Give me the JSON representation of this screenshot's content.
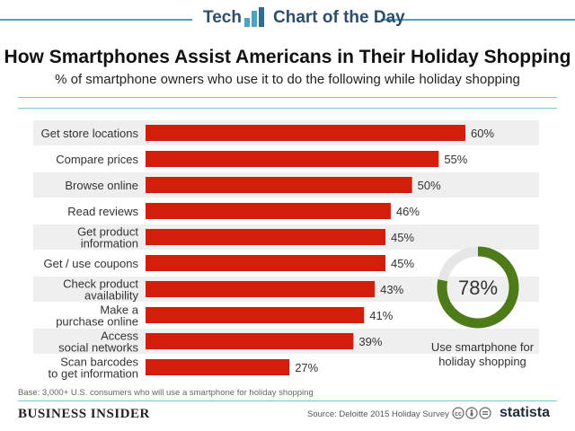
{
  "header": {
    "tech_label": "Tech",
    "cotd_label": "Chart of the Day",
    "accent_color": "#4fa3c2",
    "logo_icon": "bar-chart-icon"
  },
  "title": "How Smartphones Assist Americans in Their Holiday Shopping",
  "subtitle": "% of smartphone owners who use it to do the following while holiday shopping",
  "chart_data": {
    "type": "bar",
    "orientation": "horizontal",
    "title": "How Smartphones Assist Americans in Their Holiday Shopping",
    "subtitle": "% of smartphone owners who use it to do the following while holiday shopping",
    "categories": [
      [
        "Get store locations"
      ],
      [
        "Compare prices"
      ],
      [
        "Browse online"
      ],
      [
        "Read reviews"
      ],
      [
        "Get product",
        "information"
      ],
      [
        "Get / use coupons"
      ],
      [
        "Check product",
        "availability"
      ],
      [
        "Make a",
        "purchase online"
      ],
      [
        "Access",
        "social networks"
      ],
      [
        "Scan barcodes",
        "to get information"
      ]
    ],
    "values": [
      60,
      55,
      50,
      46,
      45,
      45,
      43,
      41,
      39,
      27
    ],
    "value_labels": [
      "60%",
      "55%",
      "50%",
      "46%",
      "45%",
      "45%",
      "43%",
      "41%",
      "39%",
      "27%"
    ],
    "unit": "%",
    "xlim": [
      0,
      60
    ],
    "bar_color": "#d41e0c",
    "row_stripe_color": "#efefef",
    "donut": {
      "value": 78,
      "label": "78%",
      "caption_line1": "Use smartphone for",
      "caption_line2": "holiday shopping",
      "fill_color": "#4e7a1a",
      "track_color": "#e6e6e6"
    }
  },
  "footer": {
    "base_note": "Base: 3,000+ U.S. consumers who will use a smartphone for holiday shopping",
    "brand": "BUSINESS INSIDER",
    "source": "Source: Deloitte 2015 Holiday Survey",
    "license_icons": [
      "cc-icon",
      "by-icon",
      "nd-icon"
    ],
    "statista": "statista"
  }
}
